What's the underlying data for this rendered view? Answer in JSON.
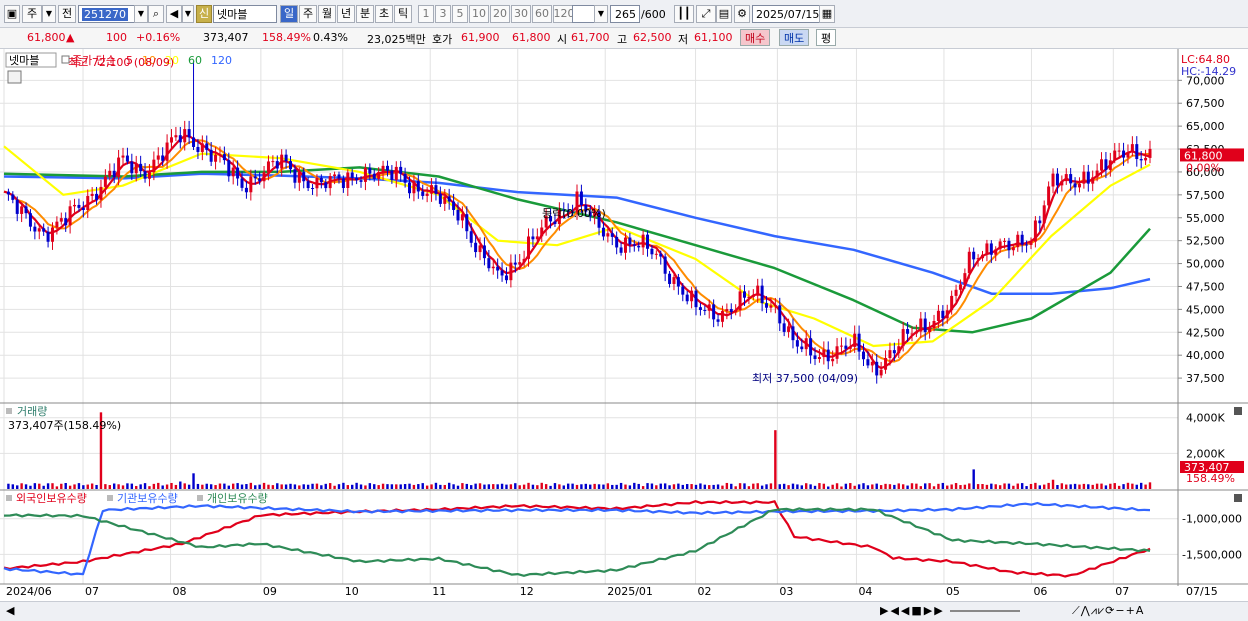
{
  "toolbar": {
    "period_button": "주",
    "prev_button": "전",
    "stock_code": "251270",
    "credit_badge": "신",
    "stock_name": "넷마블",
    "period_tabs": [
      "일",
      "주",
      "월",
      "년",
      "분",
      "초",
      "틱"
    ],
    "active_period": "일",
    "interval_buttons": [
      "1",
      "3",
      "5",
      "10",
      "20",
      "30",
      "60",
      "120"
    ],
    "bar_count": "265",
    "bar_total": "/600",
    "date": "2025/07/15"
  },
  "quote": {
    "price": "61,800",
    "change_arrow": "▲",
    "change": "100",
    "change_pct": "+0.16%",
    "volume": "373,407",
    "volume_ratio": "158.49%",
    "turnover": "0.43%",
    "amount": "23,025백만",
    "ask_label": "호가",
    "ask1": "61,900",
    "bid1": "61,800",
    "open_label": "시",
    "open": "61,700",
    "high_label": "고",
    "high": "62,500",
    "low_label": "저",
    "low": "61,100",
    "buy_button": "매수",
    "sell_button": "매도",
    "avg_button": "평"
  },
  "colors": {
    "up": "#e0001b",
    "down": "#0000cc",
    "ma5": "#e0001b",
    "ma10": "#ff8c00",
    "ma20": "#ffff00",
    "ma60": "#1a9a3a",
    "ma120": "#3366ff",
    "foreign": "#e0001b",
    "institution": "#3366ff",
    "individual": "#2e8b57"
  },
  "chart_data": [
    {
      "type": "candlestick",
      "panel": "price",
      "stock_label": "넷마블",
      "indicator_label": "종가 단순",
      "ma_periods": [
        "5",
        "10",
        "20",
        "60",
        "120"
      ],
      "y_ticks": [
        37500,
        40000,
        42500,
        45000,
        47500,
        50000,
        52500,
        55000,
        57500,
        60000,
        62500,
        65000,
        67500,
        70000
      ],
      "y_tick_labels": [
        "37,500",
        "40,000",
        "42,500",
        "45,000",
        "47,500",
        "50,000",
        "52,500",
        "55,000",
        "57,500",
        "60,000",
        "62,500",
        "65,000",
        "67,500",
        "70,000"
      ],
      "ylim": [
        35000,
        73200
      ],
      "lc_label": "LC:64.80",
      "hc_label": "HC:-14.29",
      "last_price_label": "61,800",
      "last_pct_label": "0.00%",
      "annotations": {
        "high": {
          "text": "최고 72,100 (08/09)",
          "date": "2024/08/09",
          "value": 72100
        },
        "low": {
          "text": "최저 37,500 (04/09)",
          "date": "2025/04/09",
          "value": 37500
        },
        "mid": {
          "text": "등락(0.00%)"
        }
      },
      "close_series": [
        [
          "2024/06/03",
          57500
        ],
        [
          "2024/06/10",
          55000
        ],
        [
          "2024/06/17",
          53500
        ],
        [
          "2024/06/24",
          54500
        ],
        [
          "2024/07/01",
          56500
        ],
        [
          "2024/07/08",
          59000
        ],
        [
          "2024/07/15",
          61000
        ],
        [
          "2024/07/22",
          60000
        ],
        [
          "2024/07/29",
          62000
        ],
        [
          "2024/08/05",
          64000
        ],
        [
          "2024/08/12",
          63000
        ],
        [
          "2024/08/19",
          61000
        ],
        [
          "2024/08/26",
          58500
        ],
        [
          "2024/09/02",
          60000
        ],
        [
          "2024/09/09",
          61000
        ],
        [
          "2024/09/16",
          59500
        ],
        [
          "2024/09/23",
          58500
        ],
        [
          "2024/09/30",
          59000
        ],
        [
          "2024/10/07",
          60000
        ],
        [
          "2024/10/14",
          59500
        ],
        [
          "2024/10/21",
          60000
        ],
        [
          "2024/10/28",
          58000
        ],
        [
          "2024/11/04",
          57000
        ],
        [
          "2024/11/11",
          56000
        ],
        [
          "2024/11/18",
          51000
        ],
        [
          "2024/11/25",
          48500
        ],
        [
          "2024/12/02",
          50500
        ],
        [
          "2024/12/09",
          53000
        ],
        [
          "2024/12/16",
          55500
        ],
        [
          "2024/12/23",
          57000
        ],
        [
          "2024/12/30",
          54000
        ],
        [
          "2025/01/06",
          52500
        ],
        [
          "2025/01/13",
          52000
        ],
        [
          "2025/01/20",
          51000
        ],
        [
          "2025/01/27",
          48000
        ],
        [
          "2025/02/03",
          45000
        ],
        [
          "2025/02/10",
          44500
        ],
        [
          "2025/02/17",
          45500
        ],
        [
          "2025/02/24",
          46500
        ],
        [
          "2025/03/03",
          45500
        ],
        [
          "2025/03/10",
          41000
        ],
        [
          "2025/03/17",
          40000
        ],
        [
          "2025/03/24",
          40500
        ],
        [
          "2025/03/31",
          41000
        ],
        [
          "2025/04/07",
          38500
        ],
        [
          "2025/04/14",
          40500
        ],
        [
          "2025/04/21",
          42500
        ],
        [
          "2025/04/28",
          44000
        ],
        [
          "2025/05/05",
          45500
        ],
        [
          "2025/05/12",
          51000
        ],
        [
          "2025/05/19",
          52000
        ],
        [
          "2025/05/26",
          51500
        ],
        [
          "2025/06/02",
          53000
        ],
        [
          "2025/06/09",
          59000
        ],
        [
          "2025/06/16",
          58500
        ],
        [
          "2025/06/23",
          60000
        ],
        [
          "2025/06/30",
          61000
        ],
        [
          "2025/07/07",
          62500
        ],
        [
          "2025/07/14",
          61800
        ]
      ],
      "ma_series": {
        "ma20": [
          [
            "2024/06/03",
            62800
          ],
          [
            "2024/06/24",
            57500
          ],
          [
            "2024/07/15",
            58500
          ],
          [
            "2024/08/12",
            62000
          ],
          [
            "2024/09/09",
            61500
          ],
          [
            "2024/10/07",
            60000
          ],
          [
            "2024/11/04",
            57500
          ],
          [
            "2024/11/25",
            52500
          ],
          [
            "2024/12/16",
            52000
          ],
          [
            "2025/01/06",
            54000
          ],
          [
            "2025/02/03",
            50500
          ],
          [
            "2025/02/24",
            46000
          ],
          [
            "2025/03/17",
            44000
          ],
          [
            "2025/04/07",
            41000
          ],
          [
            "2025/04/28",
            41500
          ],
          [
            "2025/05/19",
            46000
          ],
          [
            "2025/06/09",
            53000
          ],
          [
            "2025/06/30",
            58500
          ],
          [
            "2025/07/14",
            60800
          ]
        ],
        "ma60": [
          [
            "2024/06/03",
            59800
          ],
          [
            "2024/07/15",
            59500
          ],
          [
            "2024/08/12",
            60000
          ],
          [
            "2024/09/09",
            60000
          ],
          [
            "2024/10/07",
            60500
          ],
          [
            "2024/11/04",
            59500
          ],
          [
            "2024/12/02",
            57000
          ],
          [
            "2025/01/06",
            54500
          ],
          [
            "2025/02/03",
            52000
          ],
          [
            "2025/03/03",
            49500
          ],
          [
            "2025/03/31",
            46000
          ],
          [
            "2025/04/21",
            43000
          ],
          [
            "2025/05/12",
            42500
          ],
          [
            "2025/06/02",
            44000
          ],
          [
            "2025/06/30",
            49000
          ],
          [
            "2025/07/14",
            53800
          ]
        ],
        "ma120": [
          [
            "2024/06/03",
            59500
          ],
          [
            "2024/07/15",
            59300
          ],
          [
            "2024/08/12",
            59800
          ],
          [
            "2024/09/09",
            59600
          ],
          [
            "2024/10/07",
            59300
          ],
          [
            "2024/11/04",
            58800
          ],
          [
            "2024/12/02",
            57800
          ],
          [
            "2025/01/06",
            57200
          ],
          [
            "2025/02/03",
            55000
          ],
          [
            "2025/03/03",
            53000
          ],
          [
            "2025/03/31",
            51500
          ],
          [
            "2025/04/28",
            49000
          ],
          [
            "2025/05/19",
            46700
          ],
          [
            "2025/06/09",
            46700
          ],
          [
            "2025/06/30",
            47300
          ],
          [
            "2025/07/14",
            48300
          ]
        ]
      }
    },
    {
      "type": "bar",
      "panel": "volume",
      "label": "거래량",
      "current_text": "373,407주(158.49%)",
      "y_ticks": [
        2000000,
        4000000
      ],
      "y_tick_labels": [
        "2,000K",
        "4,000K"
      ],
      "ylim": [
        0,
        4600000
      ],
      "last_volume_label": "373,407",
      "last_ratio_label": "158.49%",
      "series": [
        [
          "2024/06/03",
          230000
        ],
        [
          "2024/06/17",
          180000
        ],
        [
          "2024/07/08",
          4300000
        ],
        [
          "2024/07/22",
          260000
        ],
        [
          "2024/08/05",
          420000
        ],
        [
          "2024/08/09",
          880000
        ],
        [
          "2024/08/26",
          250000
        ],
        [
          "2024/09/16",
          200000
        ],
        [
          "2024/10/14",
          220000
        ],
        [
          "2024/11/18",
          320000
        ],
        [
          "2024/12/16",
          260000
        ],
        [
          "2025/01/20",
          210000
        ],
        [
          "2025/02/10",
          230000
        ],
        [
          "2025/03/03",
          3300000
        ],
        [
          "2025/03/24",
          240000
        ],
        [
          "2025/04/14",
          230000
        ],
        [
          "2025/05/12",
          1100000
        ],
        [
          "2025/06/09",
          520000
        ],
        [
          "2025/07/07",
          300000
        ],
        [
          "2025/07/14",
          373407
        ]
      ]
    },
    {
      "type": "line",
      "panel": "holdings",
      "legend": [
        "외국인보유수량",
        "기관보유수량",
        "개인보유수량"
      ],
      "y_ticks": [
        -1000000,
        -1500000
      ],
      "y_tick_labels": [
        "-1,000,000",
        "-1,500,000"
      ],
      "ylim": [
        -1900000,
        -640000
      ],
      "series": [
        {
          "name": "외국인보유수량",
          "points": [
            [
              "2024/06/03",
              -1700000
            ],
            [
              "2024/07/01",
              -1600000
            ],
            [
              "2024/08/05",
              -1350000
            ],
            [
              "2024/09/02",
              -950000
            ],
            [
              "2024/10/07",
              -900000
            ],
            [
              "2024/11/04",
              -870000
            ],
            [
              "2024/12/02",
              -820000
            ],
            [
              "2025/01/06",
              -860000
            ],
            [
              "2025/02/03",
              -770000
            ],
            [
              "2025/03/03",
              -770000
            ],
            [
              "2025/03/10",
              -1250000
            ],
            [
              "2025/04/07",
              -1400000
            ],
            [
              "2025/04/14",
              -1550000
            ],
            [
              "2025/05/05",
              -1600000
            ],
            [
              "2025/05/26",
              -1750000
            ],
            [
              "2025/06/16",
              -1800000
            ],
            [
              "2025/07/14",
              -1420000
            ]
          ]
        },
        {
          "name": "기관보유수량",
          "points": [
            [
              "2024/06/03",
              -1700000
            ],
            [
              "2024/07/01",
              -1780000
            ],
            [
              "2024/07/08",
              -880000
            ],
            [
              "2024/08/12",
              -820000
            ],
            [
              "2024/10/07",
              -900000
            ],
            [
              "2024/11/04",
              -890000
            ],
            [
              "2024/12/02",
              -880000
            ],
            [
              "2025/01/06",
              -880000
            ],
            [
              "2025/02/03",
              -920000
            ],
            [
              "2025/03/03",
              -900000
            ],
            [
              "2025/04/07",
              -890000
            ],
            [
              "2025/05/05",
              -870000
            ],
            [
              "2025/06/02",
              -790000
            ],
            [
              "2025/07/14",
              -880000
            ]
          ]
        },
        {
          "name": "개인보유수량",
          "points": [
            [
              "2024/06/03",
              -950000
            ],
            [
              "2024/07/01",
              -960000
            ],
            [
              "2024/08/12",
              -1400000
            ],
            [
              "2024/09/02",
              -1350000
            ],
            [
              "2024/10/07",
              -1600000
            ],
            [
              "2024/11/04",
              -1560000
            ],
            [
              "2024/12/02",
              -1790000
            ],
            [
              "2025/01/06",
              -1720000
            ],
            [
              "2025/02/03",
              -1450000
            ],
            [
              "2025/03/03",
              -870000
            ],
            [
              "2025/04/07",
              -870000
            ],
            [
              "2025/05/05",
              -1300000
            ],
            [
              "2025/06/02",
              -1350000
            ],
            [
              "2025/07/14",
              -1450000
            ]
          ]
        }
      ]
    }
  ],
  "x_axis": {
    "labels": [
      [
        "2024/06",
        "2024/06/03"
      ],
      [
        "07",
        "2024/07/01"
      ],
      [
        "08",
        "2024/08/01"
      ],
      [
        "09",
        "2024/09/02"
      ],
      [
        "10",
        "2024/10/01"
      ],
      [
        "11",
        "2024/11/01"
      ],
      [
        "12",
        "2024/12/02"
      ],
      [
        "2025/01",
        "2025/01/02"
      ],
      [
        "02",
        "2025/02/03"
      ],
      [
        "03",
        "2025/03/04"
      ],
      [
        "04",
        "2025/04/01"
      ],
      [
        "05",
        "2025/05/02"
      ],
      [
        "06",
        "2025/06/02"
      ],
      [
        "07",
        "2025/07/01"
      ]
    ],
    "right_label": "07/15"
  }
}
